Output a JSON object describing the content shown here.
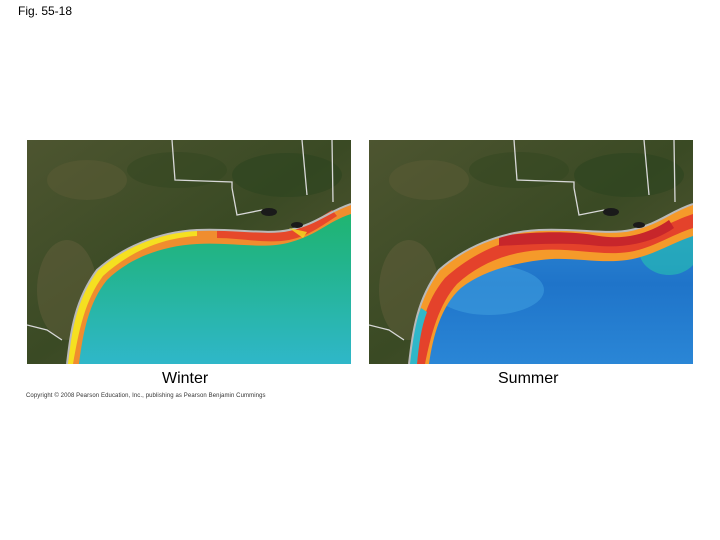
{
  "figure": {
    "label": "Fig. 55-18"
  },
  "panels": [
    {
      "caption": "Winter",
      "water_colors": [
        "#f5e020",
        "#f08d2e",
        "#e6482a",
        "#22b46a",
        "#21b89a",
        "#2fb7c9"
      ]
    },
    {
      "caption": "Summer",
      "water_colors": [
        "#f59a2a",
        "#e4422b",
        "#c7262b",
        "#2f8bd6",
        "#1f74c9",
        "#3d9dde"
      ]
    }
  ],
  "copyright": "Copyright © 2008 Pearson Education, Inc., publishing as Pearson Benjamin Cummings"
}
